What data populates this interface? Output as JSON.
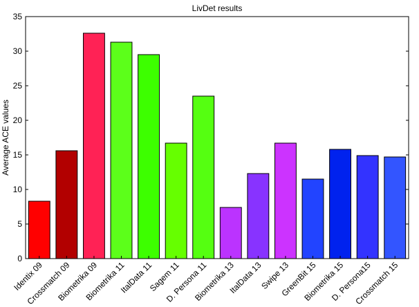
{
  "chart_data": {
    "type": "bar",
    "title": "LivDet results",
    "xlabel": "",
    "ylabel": "Average ACE values",
    "ylim": [
      0,
      35
    ],
    "yticks": [
      0,
      5,
      10,
      15,
      20,
      25,
      30,
      35
    ],
    "grid": false,
    "categories": [
      "Identix 09",
      "Crossmatch 09",
      "Biometrika 09",
      "Biometrika 11",
      "ItalData 11",
      "Sagem 11",
      "D. Persona 11",
      "Biometrika 13",
      "ItalData 13",
      "Swipe 13",
      "GreenBit 15",
      "Biometrika 15",
      "D. Persona15",
      "Crossmatch 15"
    ],
    "values": [
      8.3,
      15.6,
      32.6,
      31.3,
      29.5,
      16.7,
      23.5,
      7.4,
      12.3,
      16.7,
      11.5,
      15.8,
      14.9,
      14.7
    ],
    "colors": [
      "#ff0000",
      "#b20000",
      "#ff2255",
      "#5cff1a",
      "#3dff00",
      "#66ff00",
      "#55ff11",
      "#bb33ff",
      "#8833ff",
      "#cc33ff",
      "#2244ff",
      "#0022ee",
      "#3333ff",
      "#3355ff"
    ]
  }
}
